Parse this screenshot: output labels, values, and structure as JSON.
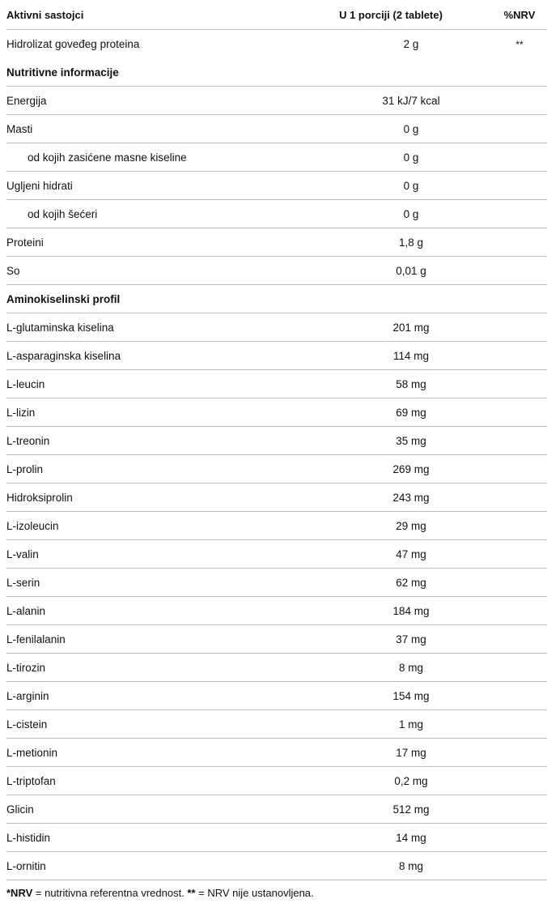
{
  "header": {
    "name": "Aktivni sastojci",
    "per_serving": "U 1 porciji (2 tablete)",
    "nrv": "%NRV"
  },
  "active": {
    "name": "Hidrolizat goveđeg proteina",
    "value": "2 g",
    "nrv": "**"
  },
  "nutrition": {
    "title": "Nutritivne informacije",
    "rows": [
      {
        "name": "Energija",
        "value": "31 kJ/7 kcal"
      },
      {
        "name": "Masti",
        "value": "0 g"
      },
      {
        "name": "od kojih zasićene masne kiseline",
        "value": "0 g",
        "indent": true
      },
      {
        "name": "Ugljeni hidrati",
        "value": "0 g"
      },
      {
        "name": "od kojih šećeri",
        "value": "0 g",
        "indent": true
      },
      {
        "name": "Proteini",
        "value": "1,8 g"
      },
      {
        "name": "So",
        "value": "0,01 g"
      }
    ]
  },
  "amino": {
    "title": "Aminokiselinski profil",
    "rows": [
      {
        "name": "L-glutaminska kiselina",
        "value": "201 mg"
      },
      {
        "name": "L-asparaginska kiselina",
        "value": "114 mg"
      },
      {
        "name": "L-leucin",
        "value": "58 mg"
      },
      {
        "name": "L-lizin",
        "value": "69 mg"
      },
      {
        "name": "L-treonin",
        "value": "35 mg"
      },
      {
        "name": "L-prolin",
        "value": "269 mg"
      },
      {
        "name": "Hidroksiprolin",
        "value": "243 mg"
      },
      {
        "name": "L-izoleucin",
        "value": "29 mg"
      },
      {
        "name": "L-valin",
        "value": "47 mg"
      },
      {
        "name": "L-serin",
        "value": "62 mg"
      },
      {
        "name": "L-alanin",
        "value": "184 mg"
      },
      {
        "name": "L-fenilalanin",
        "value": "37 mg"
      },
      {
        "name": "L-tirozin",
        "value": "8 mg"
      },
      {
        "name": "L-arginin",
        "value": "154 mg"
      },
      {
        "name": "L-cistein",
        "value": "1 mg"
      },
      {
        "name": "L-metionin",
        "value": "17 mg"
      },
      {
        "name": "L-triptofan",
        "value": "0,2 mg"
      },
      {
        "name": "Glicin",
        "value": "512 mg"
      },
      {
        "name": "L-histidin",
        "value": "14 mg"
      },
      {
        "name": "L-ornitin",
        "value": "8 mg"
      }
    ]
  },
  "footnote": {
    "nrv_bold": "*NRV",
    "nrv_text": " = nutritivna referentna vrednost. ",
    "star_bold": "**",
    "star_text": " = NRV nije ustanovljena."
  }
}
